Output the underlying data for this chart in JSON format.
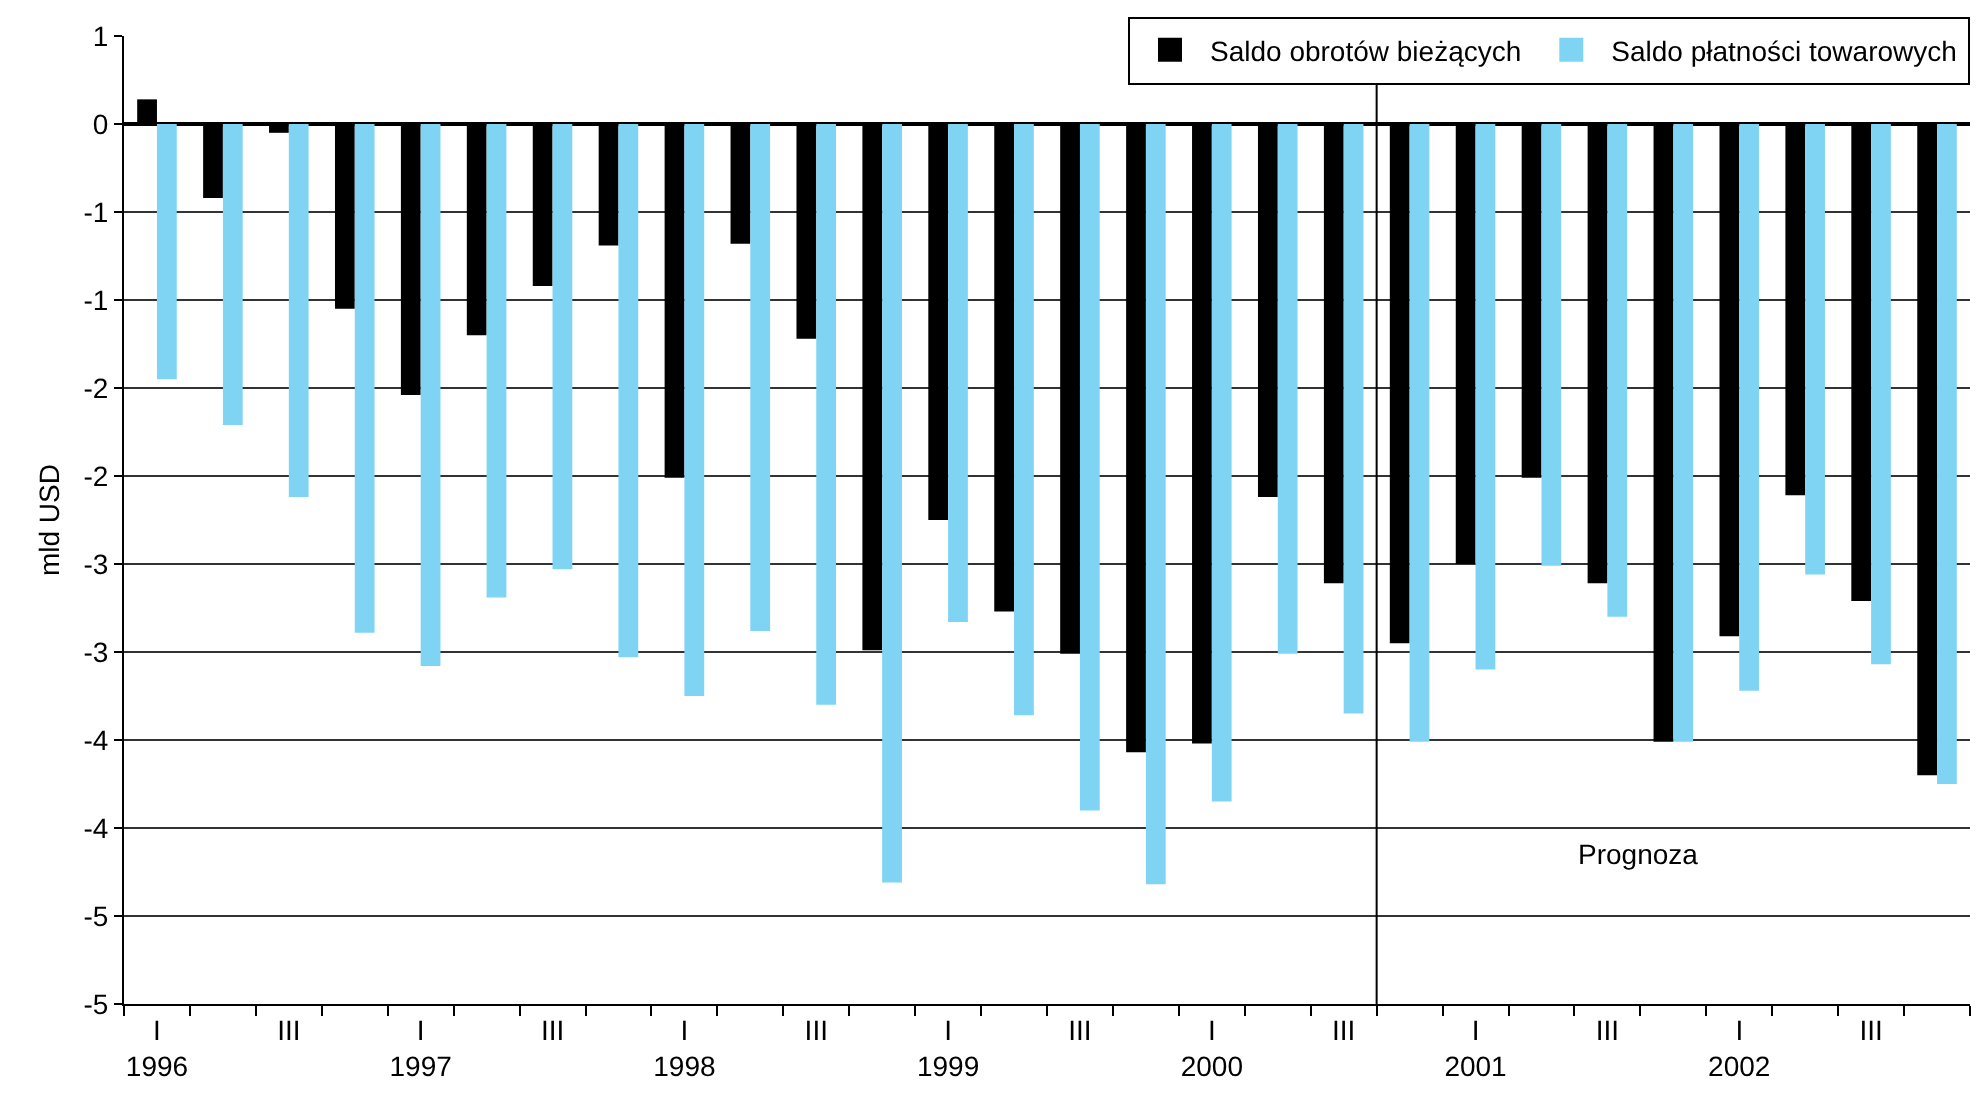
{
  "chart_data": {
    "type": "bar",
    "ylabel": "mld USD",
    "categories": [
      "I\n1996",
      null,
      "III",
      null,
      "I\n1997",
      null,
      "III",
      null,
      "I\n1998",
      null,
      "III",
      null,
      "I\n1999",
      null,
      "III",
      null,
      "I\n2000",
      null,
      "III",
      null,
      "I\n2001",
      null,
      "III",
      null,
      "I\n2002",
      null,
      "III",
      null
    ],
    "series": [
      {
        "name": "Saldo obrotów bieżących",
        "color": "#000000",
        "values": [
          0.14,
          -0.42,
          -0.05,
          -1.05,
          -1.54,
          -1.2,
          -0.92,
          -0.69,
          -2.01,
          -0.68,
          -1.22,
          -2.99,
          -2.25,
          -2.77,
          -3.01,
          -3.57,
          -3.52,
          -2.12,
          -2.61,
          -2.95,
          -2.5,
          -2.01,
          -2.61,
          -3.51,
          -2.91,
          -2.11,
          -2.71,
          -3.7
        ]
      },
      {
        "name": "Saldo płatności towarowych",
        "color": "#7fd4f4",
        "values": [
          -1.45,
          -1.71,
          -2.12,
          -2.89,
          -3.08,
          -2.69,
          -2.53,
          -3.03,
          -3.25,
          -2.88,
          -3.3,
          -4.31,
          -2.83,
          -3.36,
          -3.9,
          -4.32,
          -3.85,
          -3.01,
          -3.35,
          -3.51,
          -3.1,
          -2.51,
          -2.8,
          -3.51,
          -3.22,
          -2.56,
          -3.07,
          -3.75
        ]
      }
    ],
    "ylim": [
      -5,
      0.5
    ],
    "yticks": [
      {
        "value": 0.5,
        "label": "1"
      },
      0,
      {
        "value": -0.5,
        "label": "-1"
      },
      -1,
      {
        "value": -1.5,
        "label": "-2"
      },
      -2,
      {
        "value": -2.5,
        "label": "-3"
      },
      -3,
      {
        "value": -3.5,
        "label": "-4"
      },
      -4,
      {
        "value": -4.5,
        "label": "-5"
      },
      -5
    ],
    "annotations": [
      "Prognoza"
    ],
    "grid": "y",
    "legend": "top right"
  }
}
